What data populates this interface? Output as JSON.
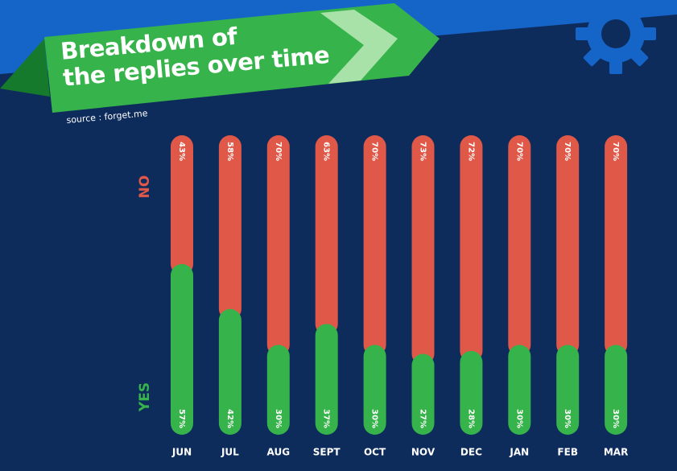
{
  "title": "Breakdown of the replies over time",
  "title_lines": [
    "Breakdown of",
    "the replies over time"
  ],
  "source": "source : forget.me",
  "legend": {
    "no": "NO",
    "yes": "YES"
  },
  "colors": {
    "background": "#0d2c5c",
    "banner_green": "#36b34a",
    "banner_dark_green": "#167a2c",
    "arrow_light": "#a8e2a8",
    "blue_band": "#1565c8",
    "gear": "#1565c8",
    "no": "#e05847",
    "yes": "#36b34a",
    "text": "#ffffff"
  },
  "chart_data": {
    "type": "bar",
    "stacked": true,
    "categories": [
      "JUN",
      "JUL",
      "AUG",
      "SEPT",
      "OCT",
      "NOV",
      "DEC",
      "JAN",
      "FEB",
      "MAR"
    ],
    "series": [
      {
        "name": "YES",
        "values": [
          57,
          42,
          30,
          37,
          30,
          27,
          28,
          30,
          30,
          30
        ]
      },
      {
        "name": "NO",
        "values": [
          43,
          58,
          70,
          63,
          70,
          73,
          72,
          70,
          70,
          70
        ]
      }
    ],
    "labels_yes": [
      "57%",
      "42%",
      "30%",
      "37%",
      "30%",
      "27%",
      "28%",
      "30%",
      "30%",
      "30%"
    ],
    "labels_no": [
      "43%",
      "58%",
      "70%",
      "63%",
      "70%",
      "73%",
      "72%",
      "70%",
      "70%",
      "70%"
    ],
    "ylim": [
      0,
      100
    ]
  }
}
